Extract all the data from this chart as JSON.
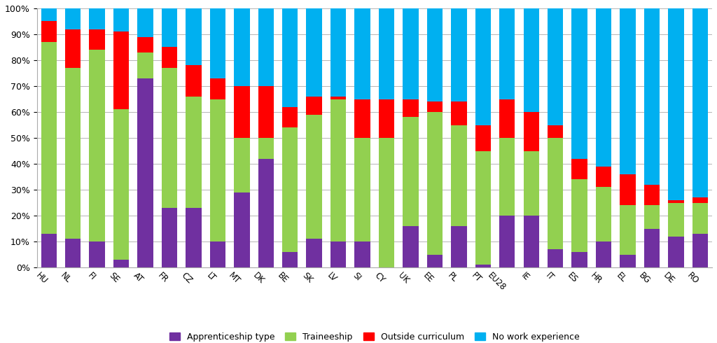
{
  "categories": [
    "HU",
    "NL",
    "FI",
    "SE",
    "AT",
    "FR",
    "CZ",
    "LT",
    "MT",
    "DK",
    "BE",
    "SK",
    "LV",
    "SI",
    "CY",
    "UK",
    "EE",
    "PL",
    "PT",
    "EU28",
    "IE",
    "IT",
    "ES",
    "HR",
    "EL",
    "BG",
    "DE",
    "RO"
  ],
  "apprenticeship": [
    13,
    11,
    10,
    3,
    73,
    23,
    23,
    10,
    29,
    42,
    6,
    11,
    10,
    10,
    0,
    16,
    5,
    16,
    1,
    20,
    20,
    7,
    6,
    10,
    5,
    15,
    12,
    13
  ],
  "traineeship": [
    74,
    66,
    74,
    58,
    10,
    54,
    43,
    55,
    21,
    8,
    48,
    48,
    55,
    40,
    50,
    42,
    55,
    39,
    44,
    30,
    25,
    43,
    28,
    21,
    19,
    9,
    13,
    12
  ],
  "outside_curriculum": [
    8,
    15,
    8,
    30,
    6,
    8,
    12,
    8,
    20,
    20,
    8,
    7,
    1,
    15,
    15,
    7,
    4,
    9,
    10,
    15,
    15,
    5,
    8,
    8,
    12,
    8,
    1,
    2
  ],
  "no_work_experience": [
    5,
    8,
    8,
    9,
    11,
    15,
    22,
    27,
    30,
    30,
    38,
    34,
    34,
    35,
    35,
    35,
    36,
    36,
    45,
    35,
    40,
    45,
    58,
    61,
    64,
    68,
    74,
    73
  ],
  "colors": {
    "apprenticeship": "#7030A0",
    "traineeship": "#92D050",
    "outside_curriculum": "#FF0000",
    "no_work_experience": "#00B0F0"
  },
  "legend_labels": [
    "Apprenticeship type",
    "Traineeship",
    "Outside curriculum",
    "No work experience"
  ],
  "background_color": "#FFFFFF",
  "grid_color": "#AAAAAA",
  "xlabel_rotation": -45,
  "xlabel_fontsize": 8.5,
  "ylabel_fontsize": 9
}
